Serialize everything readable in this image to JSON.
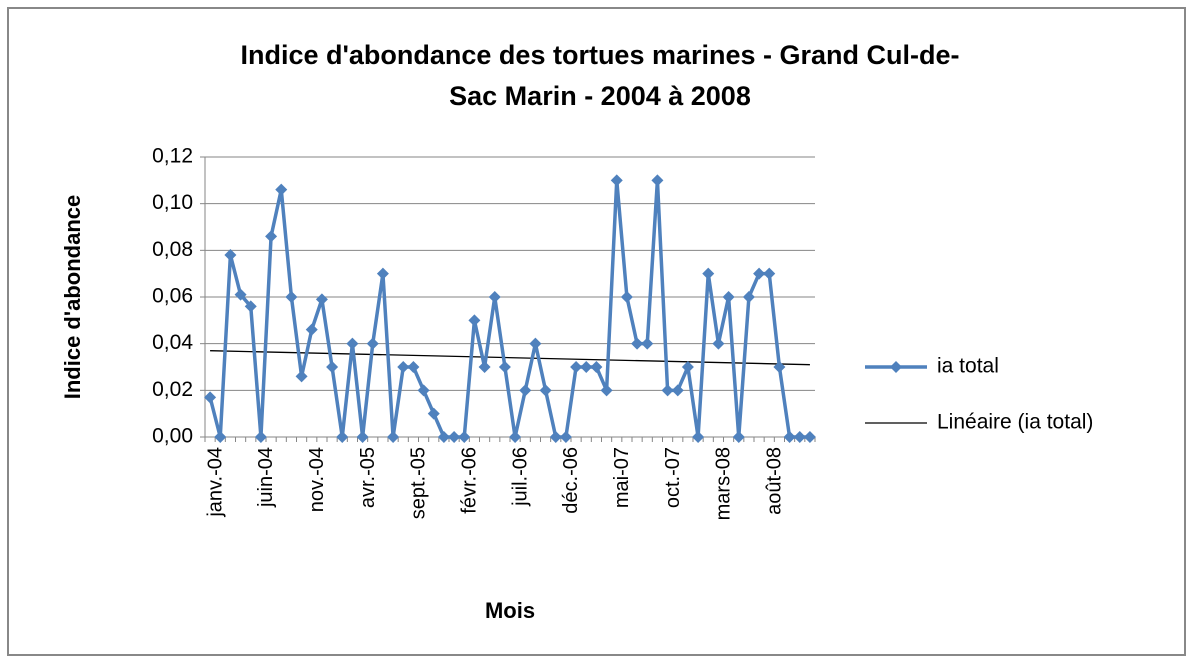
{
  "chart_data": {
    "type": "line",
    "title": [
      "Indice d'abondance  des tortues marines - Grand Cul-de-",
      "Sac Marin - 2004 à 2008"
    ],
    "x_label": "Mois",
    "y_label": "Indice d'abondance",
    "categories": [
      "janv.-04",
      null,
      null,
      null,
      null,
      "juin-04",
      null,
      null,
      null,
      null,
      "nov.-04",
      null,
      null,
      null,
      null,
      "avr.-05",
      null,
      null,
      null,
      null,
      "sept.-05",
      null,
      null,
      null,
      null,
      "févr.-06",
      null,
      null,
      null,
      null,
      "juil.-06",
      null,
      null,
      null,
      null,
      "déc.-06",
      null,
      null,
      null,
      null,
      "mai-07",
      null,
      null,
      null,
      null,
      "oct.-07",
      null,
      null,
      null,
      null,
      "mars-08",
      null,
      null,
      null,
      null,
      "août-08",
      null,
      null,
      null,
      null
    ],
    "series": [
      {
        "name": "ia total",
        "color": "#4f81bd",
        "values": [
          0.017,
          0,
          0.078,
          0.061,
          0.056,
          0,
          0.086,
          0.106,
          0.06,
          0.026,
          0.046,
          0.059,
          0.03,
          0,
          0.04,
          0,
          0.04,
          0.07,
          0,
          0.03,
          0.03,
          0.02,
          0.01,
          0,
          0,
          0,
          0.05,
          0.03,
          0.06,
          0.03,
          0,
          0.02,
          0.04,
          0.02,
          0,
          0,
          0.03,
          0.03,
          0.03,
          0.02,
          0.11,
          0.06,
          0.04,
          0.04,
          0.11,
          0.02,
          0.02,
          0.03,
          0,
          0.07,
          0.04,
          0.06,
          0,
          0.06,
          0.07,
          0.07,
          0.03,
          0,
          0,
          0
        ]
      }
    ],
    "trendline": {
      "name": "Linéaire (ia total)",
      "color": "#000000",
      "start": 0.037,
      "end": 0.031
    },
    "ylim": [
      0,
      0.12
    ],
    "yticks": [
      {
        "value": 0,
        "label": "0,00"
      },
      {
        "value": 0.02,
        "label": "0,02"
      },
      {
        "value": 0.04,
        "label": "0,04"
      },
      {
        "value": 0.06,
        "label": "0,06"
      },
      {
        "value": 0.08,
        "label": "0,08"
      },
      {
        "value": 0.1,
        "label": "0,10"
      },
      {
        "value": 0.12,
        "label": "0,12"
      }
    ],
    "grid": true,
    "legend": "right"
  }
}
